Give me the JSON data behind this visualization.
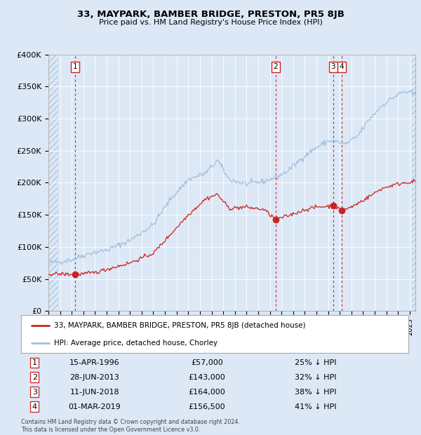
{
  "title": "33, MAYPARK, BAMBER BRIDGE, PRESTON, PR5 8JB",
  "subtitle": "Price paid vs. HM Land Registry's House Price Index (HPI)",
  "bg_color": "#dce8f5",
  "plot_bg_color": "#dce8f5",
  "hatch_color": "#b0c8e0",
  "hpi_color": "#a0c0e0",
  "sale_color": "#cc2222",
  "vline_color": "#cc2222",
  "ylim": [
    0,
    400000
  ],
  "yticks": [
    0,
    50000,
    100000,
    150000,
    200000,
    250000,
    300000,
    350000,
    400000
  ],
  "ytick_labels": [
    "£0",
    "£50K",
    "£100K",
    "£150K",
    "£200K",
    "£250K",
    "£300K",
    "£350K",
    "£400K"
  ],
  "sale_transactions": [
    {
      "num": 1,
      "date_label": "15-APR-1996",
      "date_x": 1996.29,
      "price": 57000
    },
    {
      "num": 2,
      "date_label": "28-JUN-2013",
      "date_x": 2013.49,
      "price": 143000
    },
    {
      "num": 3,
      "date_label": "11-JUN-2018",
      "date_x": 2018.44,
      "price": 164000
    },
    {
      "num": 4,
      "date_label": "01-MAR-2019",
      "date_x": 2019.17,
      "price": 156500
    }
  ],
  "legend_line1": "33, MAYPARK, BAMBER BRIDGE, PRESTON, PR5 8JB (detached house)",
  "legend_line2": "HPI: Average price, detached house, Chorley",
  "table_rows": [
    {
      "num": 1,
      "date": "15-APR-1996",
      "price": "£57,000",
      "pct": "25% ↓ HPI"
    },
    {
      "num": 2,
      "date": "28-JUN-2013",
      "price": "£143,000",
      "pct": "32% ↓ HPI"
    },
    {
      "num": 3,
      "date": "11-JUN-2018",
      "price": "£164,000",
      "pct": "38% ↓ HPI"
    },
    {
      "num": 4,
      "date": "01-MAR-2019",
      "price": "£156,500",
      "pct": "41% ↓ HPI"
    }
  ],
  "footer": "Contains HM Land Registry data © Crown copyright and database right 2024.\nThis data is licensed under the Open Government Licence v3.0.",
  "xmin": 1994.0,
  "xmax": 2025.5
}
